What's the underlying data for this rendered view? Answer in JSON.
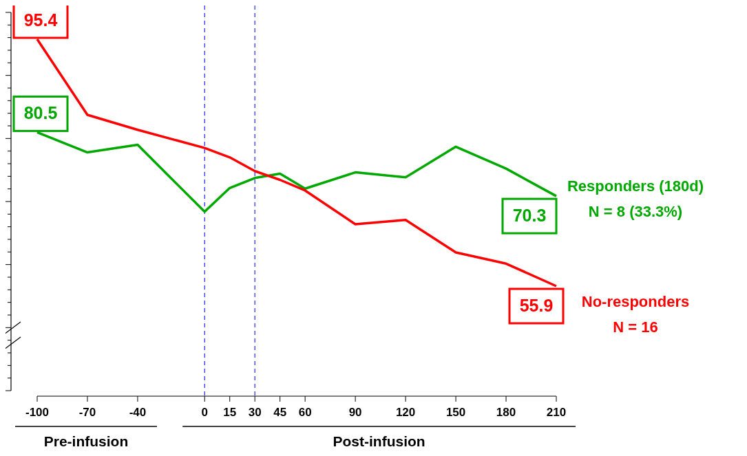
{
  "chart_data": {
    "type": "line",
    "x": [
      -100,
      -70,
      -40,
      0,
      15,
      30,
      45,
      60,
      90,
      120,
      150,
      180,
      210
    ],
    "series": [
      {
        "name": "Responders (180d)\nN = 8 (33.3%)",
        "color": "#00a800",
        "values": [
          80.5,
          77.3,
          78.5,
          67.8,
          71.6,
          73.2,
          73.9,
          71.5,
          74.1,
          73.3,
          78.2,
          74.7,
          70.3
        ],
        "value_labels": [
          "80.5",
          null,
          null,
          null,
          null,
          null,
          null,
          null,
          null,
          null,
          null,
          null,
          "70.3"
        ]
      },
      {
        "name": "No-responders\nN = 16",
        "color": "#ff0000",
        "values": [
          95.4,
          83.3,
          80.9,
          78.0,
          76.5,
          74.3,
          72.9,
          71.2,
          65.8,
          66.5,
          61.3,
          59.5,
          55.9
        ],
        "value_labels": [
          "95.4",
          null,
          null,
          null,
          null,
          null,
          null,
          null,
          null,
          null,
          null,
          null,
          "55.9"
        ]
      }
    ],
    "xlim": [
      -100,
      210
    ],
    "xticks": [
      -100,
      -70,
      -40,
      0,
      15,
      30,
      45,
      60,
      90,
      120,
      150,
      180,
      210
    ],
    "ref_lines": [
      {
        "axis": "x",
        "value": 0,
        "color": "#3333ff",
        "line_style": "dashed"
      },
      {
        "axis": "x",
        "value": 30,
        "color": "#3333ff",
        "line_style": "dashed"
      }
    ],
    "annotations": [
      "Pre-infusion",
      "Post-infusion"
    ],
    "legend": "right",
    "marker": "none",
    "line_style": "solid",
    "tick_labels": "x"
  }
}
